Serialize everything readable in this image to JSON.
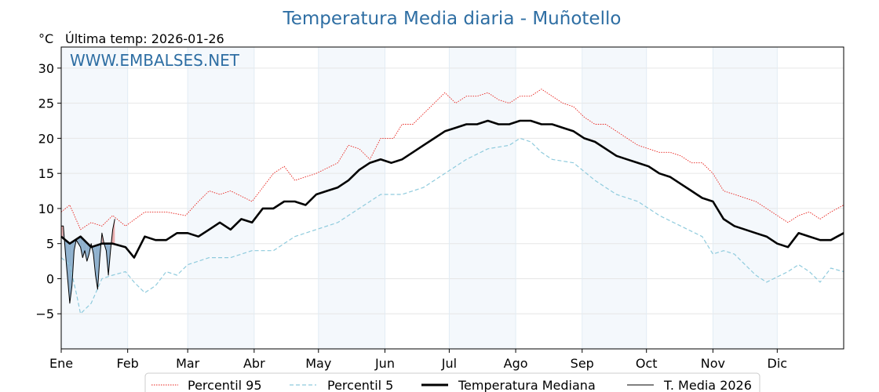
{
  "chart_data": {
    "type": "line",
    "title": "Temperatura Media diaria - Muñotello",
    "unit_label": "°C",
    "last_temp_label": "Última temp: 2026-01-26",
    "watermark": "WWW.EMBALSES.NET",
    "ylim": [
      -10,
      33
    ],
    "yticks": [
      30,
      25,
      20,
      15,
      10,
      5,
      0,
      -5
    ],
    "ytick_labels": [
      "30",
      "25",
      "20",
      "15",
      "10",
      "5",
      "0",
      "−5"
    ],
    "xlim": [
      1,
      366
    ],
    "months": [
      {
        "label": "Ene",
        "day": 1
      },
      {
        "label": "Feb",
        "day": 32
      },
      {
        "label": "Mar",
        "day": 60
      },
      {
        "label": "Abr",
        "day": 91
      },
      {
        "label": "May",
        "day": 121
      },
      {
        "label": "Jun",
        "day": 152
      },
      {
        "label": "Jul",
        "day": 182
      },
      {
        "label": "Ago",
        "day": 213
      },
      {
        "label": "Sep",
        "day": 244
      },
      {
        "label": "Oct",
        "day": 274
      },
      {
        "label": "Nov",
        "day": 305
      },
      {
        "label": "Dic",
        "day": 335
      }
    ],
    "series": [
      {
        "name": "Percentil 95",
        "color": "#e8231d",
        "style": "dotted",
        "x": [
          1,
          5,
          10,
          15,
          20,
          25,
          31,
          40,
          50,
          59,
          65,
          70,
          75,
          80,
          90,
          95,
          100,
          105,
          110,
          120,
          130,
          135,
          140,
          145,
          150,
          156,
          160,
          165,
          170,
          175,
          180,
          185,
          190,
          195,
          200,
          205,
          210,
          215,
          220,
          225,
          230,
          235,
          240,
          245,
          250,
          255,
          260,
          265,
          270,
          275,
          280,
          285,
          290,
          295,
          300,
          305,
          310,
          315,
          320,
          325,
          330,
          335,
          340,
          345,
          350,
          355,
          360,
          366
        ],
        "y": [
          9.5,
          10.5,
          7,
          8,
          7.5,
          9,
          7.5,
          9.5,
          9.5,
          9,
          11,
          12.5,
          12,
          12.5,
          11,
          13,
          15,
          16,
          14,
          15,
          16.5,
          19,
          18.5,
          17,
          20,
          20,
          22,
          22,
          23.5,
          25,
          26.5,
          25,
          26,
          26,
          26.5,
          25.5,
          25,
          26,
          26,
          27,
          26,
          25,
          24.5,
          23,
          22,
          22,
          21,
          20,
          19,
          18.5,
          18,
          18,
          17.5,
          16.5,
          16.5,
          15,
          12.5,
          12,
          11.5,
          11,
          10,
          9,
          8,
          9,
          9.5,
          8.5,
          9.5,
          10.5
        ]
      },
      {
        "name": "Percentil 5",
        "color": "#8fcbdd",
        "style": "dashed",
        "x": [
          1,
          5,
          8,
          10,
          15,
          20,
          25,
          31,
          35,
          40,
          45,
          50,
          55,
          60,
          70,
          80,
          90,
          100,
          110,
          120,
          130,
          140,
          150,
          160,
          170,
          180,
          190,
          200,
          210,
          215,
          220,
          225,
          230,
          240,
          250,
          255,
          260,
          270,
          280,
          290,
          300,
          305,
          310,
          315,
          320,
          325,
          330,
          340,
          345,
          350,
          355,
          360,
          366
        ],
        "y": [
          3,
          2,
          -2,
          -5,
          -3.5,
          0,
          0.5,
          1,
          -0.5,
          -2,
          -1,
          1,
          0.5,
          2,
          3,
          3,
          4,
          4,
          6,
          7,
          8,
          10,
          12,
          12,
          13,
          15,
          17,
          18.5,
          19,
          20,
          19.5,
          18,
          17,
          16.5,
          14,
          13,
          12,
          11,
          9,
          7.5,
          6,
          3.5,
          4,
          3.5,
          2,
          0.5,
          -0.5,
          1,
          2,
          1,
          -0.5,
          1.5,
          1
        ]
      },
      {
        "name": "Temperatura Mediana",
        "color": "#000000",
        "style": "thick",
        "x": [
          1,
          5,
          10,
          15,
          20,
          25,
          31,
          35,
          40,
          45,
          50,
          55,
          60,
          65,
          70,
          75,
          80,
          85,
          90,
          95,
          100,
          105,
          110,
          115,
          120,
          125,
          130,
          135,
          140,
          145,
          150,
          155,
          160,
          165,
          170,
          175,
          180,
          185,
          190,
          195,
          200,
          205,
          210,
          215,
          220,
          225,
          230,
          235,
          240,
          245,
          250,
          255,
          260,
          265,
          270,
          275,
          280,
          285,
          290,
          295,
          300,
          305,
          310,
          315,
          320,
          325,
          330,
          335,
          340,
          345,
          350,
          355,
          360,
          363,
          366
        ],
        "y": [
          6,
          5,
          6,
          4.5,
          5,
          5,
          4.5,
          3,
          6,
          5.5,
          5.5,
          6.5,
          6.5,
          6,
          7,
          8,
          7,
          8.5,
          8,
          10,
          10,
          11,
          11,
          10.5,
          12,
          12.5,
          13,
          14,
          15.5,
          16.5,
          17,
          16.5,
          17,
          18,
          19,
          20,
          21,
          21.5,
          22,
          22,
          22.5,
          22,
          22,
          22.5,
          22.5,
          22,
          22,
          21.5,
          21,
          20,
          19.5,
          18.5,
          17.5,
          17,
          16.5,
          16,
          15,
          14.5,
          13.5,
          12.5,
          11.5,
          11,
          8.5,
          7.5,
          7,
          6.5,
          6,
          5,
          4.5,
          6.5,
          6,
          5.5,
          5.5,
          6,
          6.5
        ]
      },
      {
        "name": "T. Media 2026",
        "color": "#000000",
        "style": "thin",
        "x": [
          1,
          2,
          3,
          4,
          5,
          6,
          7,
          8,
          9,
          10,
          11,
          12,
          13,
          14,
          15,
          16,
          17,
          18,
          19,
          20,
          21,
          22,
          23,
          24,
          25,
          26
        ],
        "y": [
          7.5,
          7.5,
          3.5,
          0,
          -3.5,
          -1,
          4,
          5.5,
          5,
          4.5,
          3,
          4,
          2.5,
          3.5,
          5,
          3.5,
          0.5,
          -1.5,
          3,
          6.5,
          5,
          4,
          0.5,
          4,
          7,
          8.5
        ]
      }
    ],
    "legend": [
      {
        "label": "Percentil 95"
      },
      {
        "label": "Percentil 5"
      },
      {
        "label": "Temperatura Mediana"
      },
      {
        "label": "T. Media 2026"
      }
    ]
  }
}
